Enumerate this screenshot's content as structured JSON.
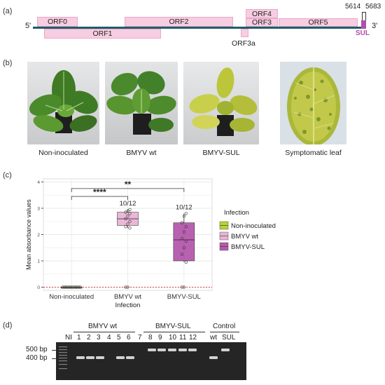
{
  "panel_labels": {
    "a": "(a)",
    "b": "(b)",
    "c": "(c)",
    "d": "(d)"
  },
  "genome": {
    "end5": "5'",
    "end3": "3'",
    "pos_5614": "5614",
    "pos_5683": "5683",
    "sul_label": "SUL",
    "orfs": [
      {
        "label": "ORF0"
      },
      {
        "label": "ORF1"
      },
      {
        "label": "ORF2"
      },
      {
        "label": "ORF4"
      },
      {
        "label": "ORF3"
      },
      {
        "label": "ORF5"
      },
      {
        "label": "ORF3a"
      }
    ]
  },
  "photos": {
    "captions": [
      "Non-inoculated",
      "BMYV wt",
      "BMYV-SUL",
      "Symptomatic leaf"
    ]
  },
  "chart_data": {
    "type": "box",
    "xlabel": "Infection",
    "ylabel": "Mean absorbance values",
    "categories": [
      "Non-inoculated",
      "BMYV wt",
      "BMYV-SUL"
    ],
    "ylim": [
      0,
      4
    ],
    "yticks": [
      "0",
      "1",
      "2",
      "3",
      "4"
    ],
    "grid": true,
    "threshold_line": 0.0,
    "boxes": [
      {
        "q1": 0.0,
        "median": 0.0,
        "q3": 0.0,
        "whisker_low": 0.0,
        "whisker_high": 0.0,
        "points": [
          0,
          0,
          0,
          0,
          0,
          0,
          0,
          0,
          0,
          0,
          0,
          0
        ]
      },
      {
        "q1": 2.35,
        "median": 2.6,
        "q3": 2.85,
        "whisker_low": 2.25,
        "whisker_high": 2.95,
        "points": [
          0,
          0,
          2.25,
          2.3,
          2.4,
          2.5,
          2.6,
          2.7,
          2.8,
          2.85,
          2.9,
          2.95
        ]
      },
      {
        "q1": 1.0,
        "median": 1.8,
        "q3": 2.45,
        "whisker_low": 0.95,
        "whisker_high": 2.8,
        "points": [
          0,
          0,
          0.95,
          1.25,
          1.5,
          1.75,
          1.85,
          2.1,
          2.3,
          2.45,
          2.7,
          2.8
        ]
      }
    ],
    "box_labels": [
      "",
      "10/12",
      "10/12"
    ],
    "significance": [
      {
        "from": 0,
        "to": 2,
        "label": "**",
        "y": 3.75
      },
      {
        "from": 0,
        "to": 1,
        "label": "****",
        "y": 3.45
      }
    ],
    "legend": {
      "title": "Infection",
      "position": "right",
      "entries": [
        {
          "name": "Non-inoculated",
          "color": "#b5d334"
        },
        {
          "name": "BMYV wt",
          "color": "#eab4d6"
        },
        {
          "name": "BMYV-SUL",
          "color": "#b659ad"
        }
      ]
    }
  },
  "gel": {
    "group_wt": "BMYV wt",
    "group_sul": "BMYV-SUL",
    "group_control": "Control",
    "lanes": [
      "NI",
      "1",
      "2",
      "3",
      "4",
      "5",
      "6",
      "7",
      "8",
      "9",
      "10",
      "11",
      "12",
      "wt",
      "SUL"
    ],
    "marker_500": "500 bp",
    "marker_400": "400 bp"
  },
  "colors": {
    "genome_line": "#1c5f6b",
    "orf_fill": "#f7cde1",
    "sul": "#b24fa8"
  }
}
